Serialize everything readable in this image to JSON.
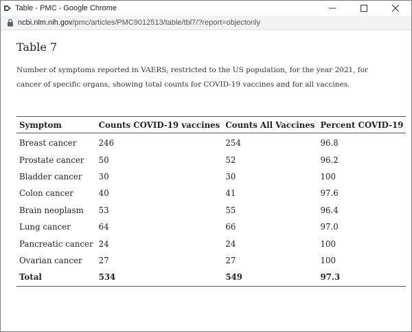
{
  "window": {
    "title": "Table - PMC - Google Chrome",
    "controls": {
      "minimize": "—",
      "maximize": "☐",
      "close": "✕"
    }
  },
  "address": {
    "host": "ncbi.nlm.nih.gov",
    "path": "/pmc/articles/PMC9012513/table/tbl7/?report=objectonly"
  },
  "page": {
    "title": "Table 7",
    "caption": "Number of symptoms reported in VAERS, restricted to the US population, for the year 2021, for cancer of specific organs, showing total counts for COVID-19 vaccines and for all vaccines."
  },
  "table": {
    "headers": [
      "Symptom",
      "Counts COVID-19 vaccines",
      "Counts All Vaccines",
      "Percent COVID-19"
    ],
    "rows": [
      [
        "Breast cancer",
        "246",
        "254",
        "96.8"
      ],
      [
        "Prostate cancer",
        "50",
        "52",
        "96.2"
      ],
      [
        "Bladder cancer",
        "30",
        "30",
        "100"
      ],
      [
        "Colon cancer",
        "40",
        "41",
        "97.6"
      ],
      [
        "Brain neoplasm",
        "53",
        "55",
        "96.4"
      ],
      [
        "Lung cancer",
        "64",
        "66",
        "97.0"
      ],
      [
        "Pancreatic cancer",
        "24",
        "24",
        "100"
      ],
      [
        "Ovarian cancer",
        "27",
        "27",
        "100"
      ]
    ],
    "total": [
      "Total",
      "534",
      "549",
      "97.3"
    ]
  },
  "icons": {
    "app": "pmc-table-icon",
    "lock": "lock-icon"
  },
  "colors": {
    "titlebar": "#ffffff",
    "addressbar": "#f1f3f4",
    "rule": "#555555"
  }
}
